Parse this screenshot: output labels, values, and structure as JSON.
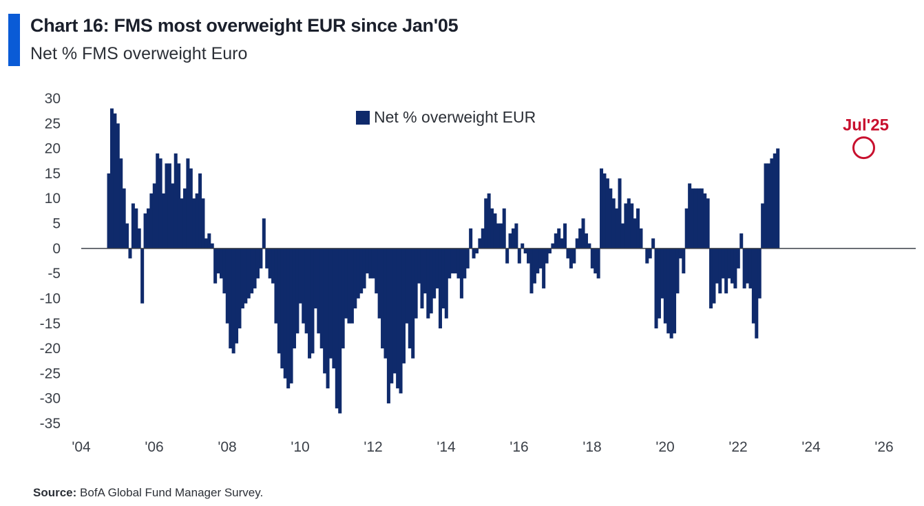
{
  "header": {
    "title": "Chart 16: FMS most overweight EUR since Jan'05",
    "subtitle": "Net % FMS overweight Euro"
  },
  "footer": {
    "source_label": "Source:",
    "source_text": "BofA Global Fund Manager Survey."
  },
  "colors": {
    "bar": "#0f2a6b",
    "accent": "#0a5bd6",
    "annotation": "#c8102e",
    "zero_line": "#3a3f47"
  },
  "chart_data": {
    "type": "bar",
    "title": "Chart 16: FMS most overweight EUR since Jan'05",
    "subtitle": "Net % FMS overweight Euro",
    "legend": {
      "position": "top-center",
      "entries": [
        "Net % overweight EUR"
      ]
    },
    "ylim": [
      -35,
      30
    ],
    "yticks": [
      30,
      25,
      20,
      15,
      10,
      5,
      0,
      -5,
      -10,
      -15,
      -20,
      -25,
      -30,
      -35
    ],
    "xlim": [
      2004,
      2026
    ],
    "xticks": [
      {
        "value": 2004,
        "label": "'04"
      },
      {
        "value": 2006,
        "label": "'06"
      },
      {
        "value": 2008,
        "label": "'08"
      },
      {
        "value": 2010,
        "label": "'10"
      },
      {
        "value": 2012,
        "label": "'12"
      },
      {
        "value": 2014,
        "label": "'14"
      },
      {
        "value": 2016,
        "label": "'16"
      },
      {
        "value": 2018,
        "label": "'18"
      },
      {
        "value": 2020,
        "label": "'20"
      },
      {
        "value": 2022,
        "label": "'22"
      },
      {
        "value": 2024,
        "label": "'24"
      },
      {
        "value": 2026,
        "label": "'26"
      }
    ],
    "grid": false,
    "annotation": {
      "label": "Jul'25",
      "x": 2025.5,
      "y": 20
    },
    "series": [
      {
        "name": "Net % overweight EUR",
        "start": "2004-10",
        "frequency": "monthly",
        "values": [
          15,
          28,
          27,
          25,
          18,
          12,
          5,
          -2,
          9,
          8,
          4,
          -11,
          7,
          8,
          11,
          13,
          19,
          18,
          11,
          17,
          17,
          13,
          19,
          17,
          10,
          12,
          18,
          16,
          10,
          11,
          15,
          10,
          2,
          3,
          1,
          -7,
          -5,
          -6,
          -9,
          -15,
          -20,
          -21,
          -19,
          -16,
          -12,
          -11,
          -10,
          -9,
          -8,
          -6,
          -4,
          6,
          -4,
          -6,
          -7,
          -15,
          -21,
          -24,
          -26,
          -28,
          -27,
          -20,
          -17,
          -11,
          -15,
          -17,
          -22,
          -21,
          -12,
          -17,
          -20,
          -25,
          -28,
          -22,
          -24,
          -32,
          -33,
          -20,
          -14,
          -15,
          -15,
          -12,
          -10,
          -9,
          -8,
          -5,
          -6,
          -6,
          -9,
          -14,
          -20,
          -22,
          -31,
          -27,
          -25,
          -28,
          -29,
          -23,
          -15,
          -20,
          -22,
          -14,
          -7,
          -12,
          -9,
          -14,
          -13,
          -10,
          -8,
          -16,
          -12,
          -14,
          -6,
          -5,
          -5,
          -6,
          -10,
          -6,
          -4,
          4,
          -2,
          -1,
          2,
          4,
          10,
          11,
          8,
          7,
          5,
          5,
          8,
          -3,
          3,
          4,
          5,
          -3,
          1,
          -1,
          -3,
          -9,
          -7,
          -5,
          -4,
          -8,
          -3,
          -1,
          1,
          3,
          4,
          2,
          5,
          -2,
          -4,
          -3,
          2,
          4,
          6,
          3,
          1,
          -4,
          -5,
          -6,
          16,
          15,
          14,
          12,
          10,
          8,
          14,
          5,
          9,
          10,
          9,
          6,
          8,
          4,
          0,
          -3,
          -2,
          2,
          -16,
          -14,
          -10,
          -15,
          -17,
          -18,
          -17,
          -9,
          -2,
          -5,
          8,
          13,
          12,
          12,
          12,
          12,
          11,
          10,
          -12,
          -11,
          -7,
          -9,
          -6,
          -9,
          -6,
          -7,
          -8,
          -4,
          3,
          -8,
          -7,
          -8,
          -15,
          -18,
          -10,
          9,
          17,
          17,
          18,
          19,
          20
        ]
      }
    ]
  }
}
